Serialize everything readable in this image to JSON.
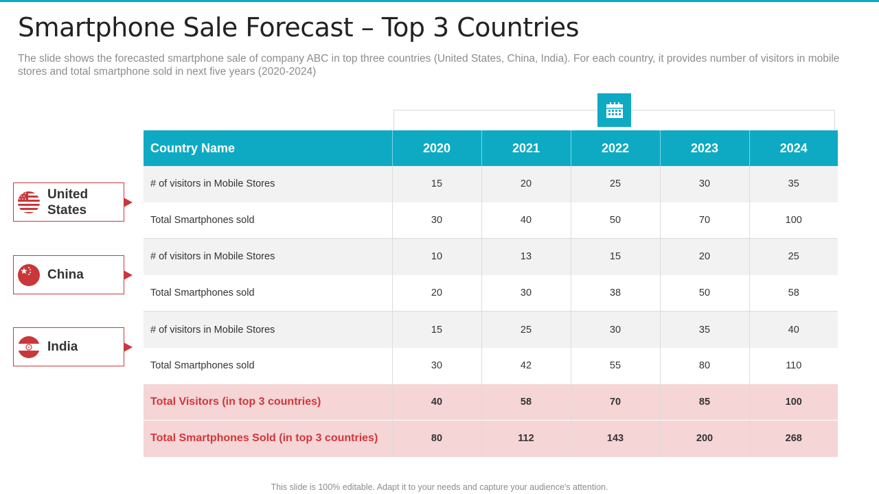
{
  "title": "Smartphone Sale Forecast – Top 3 Countries",
  "subtitle": "The slide shows the forecasted smartphone sale of company ABC in top three countries (United States, China, India). For each country, it provides number of visitors in mobile stores and total smartphone sold in next five years (2020-2024)",
  "table": {
    "headers": [
      "Country Name",
      "2020",
      "2021",
      "2022",
      "2023",
      "2024"
    ],
    "rows": [
      {
        "label": "# of visitors in Mobile  Stores",
        "values": [
          "15",
          "20",
          "25",
          "30",
          "35"
        ]
      },
      {
        "label": "Total Smartphones sold",
        "values": [
          "30",
          "40",
          "50",
          "70",
          "100"
        ]
      },
      {
        "label": "# of visitors in Mobile  Stores",
        "values": [
          "10",
          "13",
          "15",
          "20",
          "25"
        ]
      },
      {
        "label": "Total Smartphones sold",
        "values": [
          "20",
          "30",
          "38",
          "50",
          "58"
        ]
      },
      {
        "label": "# of visitors in Mobile  Stores",
        "values": [
          "15",
          "25",
          "30",
          "35",
          "40"
        ]
      },
      {
        "label": "Total Smartphones sold",
        "values": [
          "30",
          "42",
          "55",
          "80",
          "110"
        ]
      }
    ],
    "totals": [
      {
        "label": "Total Visitors (in top 3 countries)",
        "values": [
          "40",
          "58",
          "70",
          "85",
          "100"
        ]
      },
      {
        "label": "Total Smartphones Sold (in top 3 countries)",
        "values": [
          "80",
          "112",
          "143",
          "200",
          "268"
        ]
      }
    ]
  },
  "countries": [
    {
      "line1": "United",
      "line2": "States",
      "flag": "us-flag-icon"
    },
    {
      "line1": "China",
      "line2": "",
      "flag": "china-flag-icon"
    },
    {
      "line1": "India",
      "line2": "",
      "flag": "india-flag-icon"
    }
  ],
  "icons": {
    "header": "calendar-icon"
  },
  "colors": {
    "accent": "#0eaac4",
    "red": "#c9373a",
    "total_bg": "#f5d5d6",
    "shade": "#f2f2f2"
  },
  "footer": "This slide is 100% editable. Adapt it to your needs and capture your audience's attention."
}
